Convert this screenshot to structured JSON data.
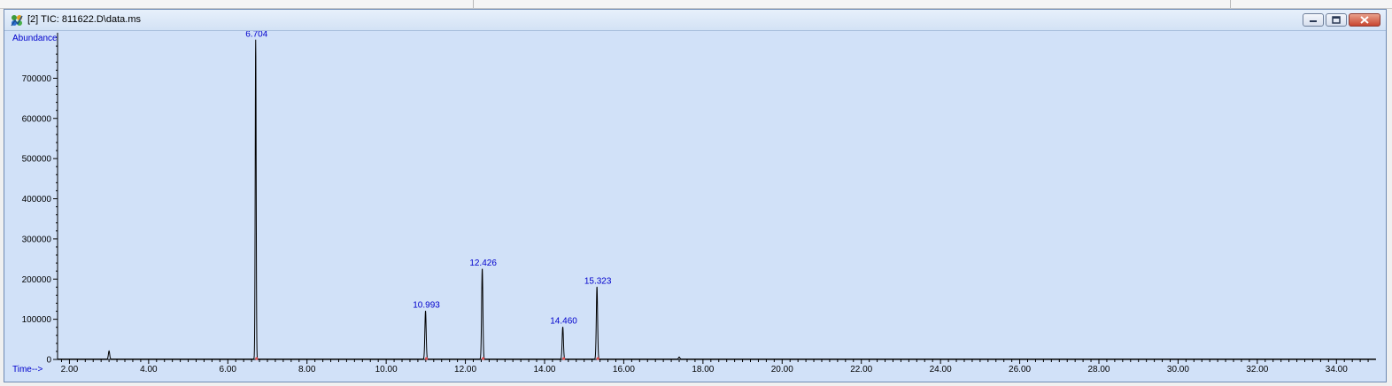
{
  "window": {
    "title": "[2] TIC: 811622.D\\data.ms",
    "icon": "chromatogram-app-icon",
    "controls": [
      "minimize-icon",
      "maximize-icon",
      "close-icon"
    ]
  },
  "chart_data": {
    "type": "line",
    "title": "",
    "xlabel": "Time-->",
    "ylabel": "Abundance",
    "xlim": [
      1.7,
      35.0
    ],
    "ylim": [
      0,
      800000
    ],
    "x_ticks": [
      "2.00",
      "4.00",
      "6.00",
      "8.00",
      "10.00",
      "12.00",
      "14.00",
      "16.00",
      "18.00",
      "20.00",
      "22.00",
      "24.00",
      "26.00",
      "28.00",
      "30.00",
      "32.00",
      "34.00"
    ],
    "y_ticks": [
      "0",
      "100000",
      "200000",
      "300000",
      "400000",
      "500000",
      "600000",
      "700000"
    ],
    "peaks": [
      {
        "rt": 3.0,
        "height": 20000,
        "label": ""
      },
      {
        "rt": 6.704,
        "height": 795000,
        "label": "6.704"
      },
      {
        "rt": 10.993,
        "height": 120000,
        "label": "10.993"
      },
      {
        "rt": 12.426,
        "height": 225000,
        "label": "12.426"
      },
      {
        "rt": 14.46,
        "height": 80000,
        "label": "14.460"
      },
      {
        "rt": 15.323,
        "height": 180000,
        "label": "15.323"
      },
      {
        "rt": 17.4,
        "height": 5000,
        "label": ""
      }
    ],
    "colors": {
      "background": "#d1e1f8",
      "trace": "#000000",
      "labels": "#0000cc",
      "axis": "#000000"
    }
  }
}
